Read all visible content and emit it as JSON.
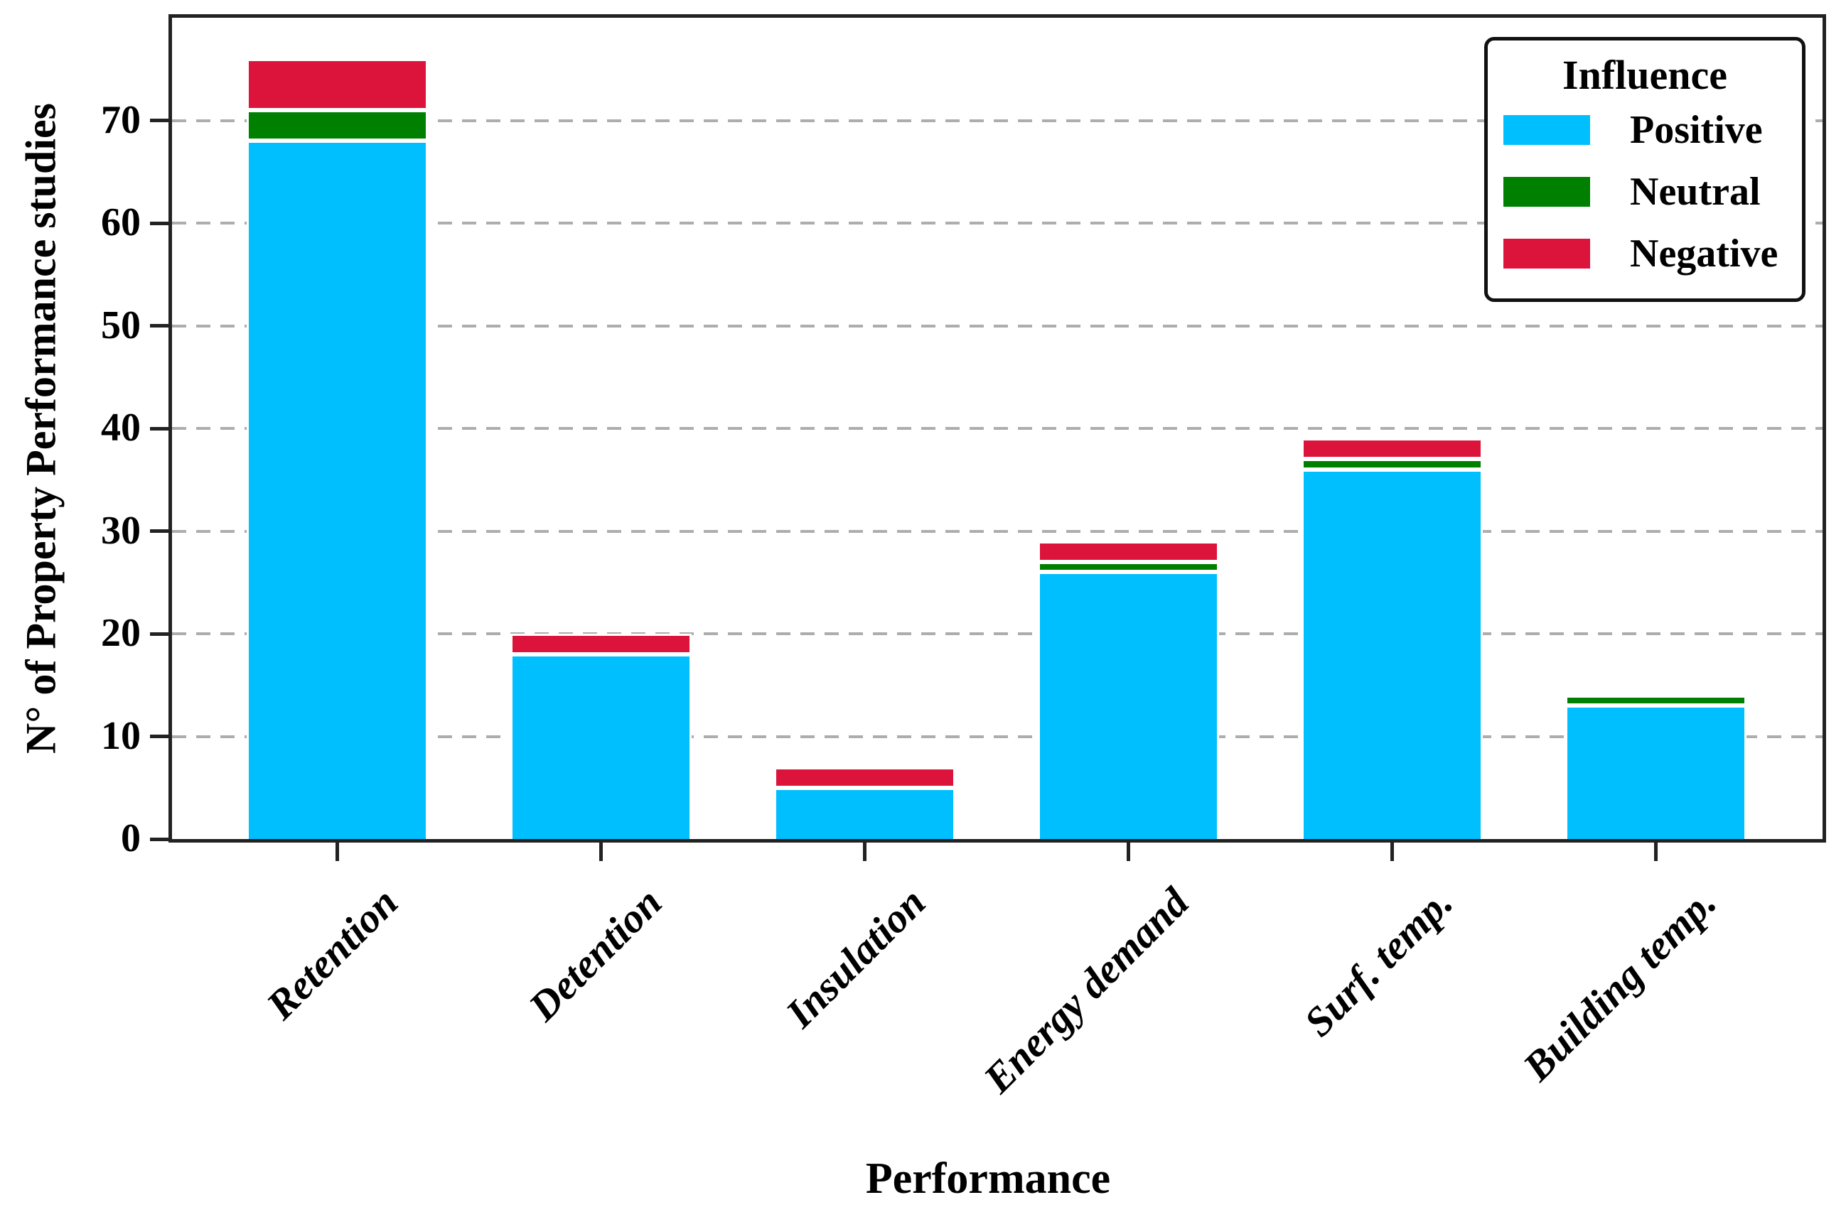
{
  "chart_data": {
    "type": "bar",
    "stacked": true,
    "title": "",
    "xlabel": "Performance",
    "ylabel": "N° of Property Performance studies",
    "categories": [
      "Retention",
      "Detention",
      "Insulation",
      "Energy demand",
      "Surf. temp.",
      "Building temp."
    ],
    "series": [
      {
        "name": "Positive",
        "color": "#00BFFF",
        "values": [
          68,
          18,
          5,
          26,
          36,
          13
        ]
      },
      {
        "name": "Neutral",
        "color": "#008000",
        "values": [
          3,
          0,
          0,
          1,
          1,
          1
        ]
      },
      {
        "name": "Negative",
        "color": "#DC143C",
        "values": [
          5,
          2,
          2,
          2,
          2,
          0
        ]
      }
    ],
    "stack_totals": [
      76,
      20,
      7,
      29,
      39,
      14
    ],
    "ylim": [
      0,
      80
    ],
    "yticks": [
      0,
      10,
      20,
      30,
      40,
      50,
      60,
      70
    ],
    "grid": "horizontal dashed",
    "legend": {
      "title": "Influence",
      "position": "upper right"
    },
    "colors": {
      "spine": "#222222",
      "gridline": "#adadad",
      "background": "#ffffff",
      "bar_edge": "#ffffff"
    }
  }
}
